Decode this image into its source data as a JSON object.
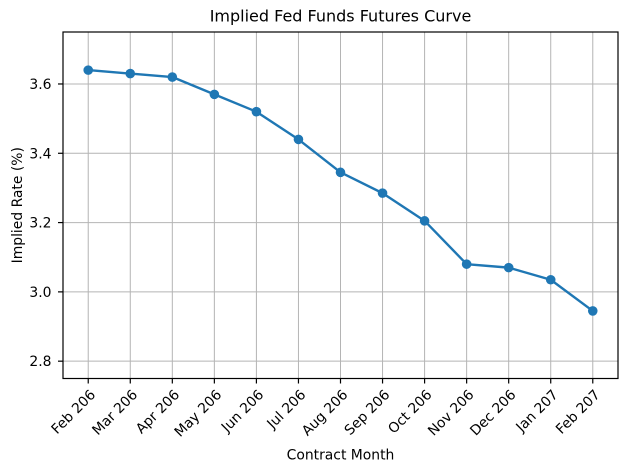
{
  "chart_data": {
    "type": "line",
    "title": "Implied Fed Funds Futures Curve",
    "xlabel": "Contract Month",
    "ylabel": "Implied Rate (%)",
    "categories": [
      "Feb 206",
      "Mar 206",
      "Apr 206",
      "May 206",
      "Jun 206",
      "Jul 206",
      "Aug 206",
      "Sep 206",
      "Oct 206",
      "Nov 206",
      "Dec 206",
      "Jan 207",
      "Feb 207"
    ],
    "series": [
      {
        "name": "Implied Rate",
        "values": [
          3.64,
          3.63,
          3.62,
          3.57,
          3.52,
          3.44,
          3.345,
          3.285,
          3.205,
          3.08,
          3.07,
          3.035,
          2.945
        ]
      }
    ],
    "yticks": [
      2.8,
      3.0,
      3.2,
      3.4,
      3.6
    ],
    "ytick_labels": [
      "2.8",
      "3.0",
      "3.2",
      "3.4",
      "3.6"
    ],
    "ylim": [
      2.75,
      3.75
    ],
    "xlim": [
      -0.6,
      12.6
    ],
    "grid": true,
    "legend": "none",
    "xtick_rotation_deg": 45,
    "line_color": "#1f77b4",
    "marker": "o",
    "marker_color": "#1f77b4",
    "grid_color": "#b4b4b4",
    "spine_color": "#000000",
    "text_color": "#000000",
    "background_color": "#ffffff"
  }
}
